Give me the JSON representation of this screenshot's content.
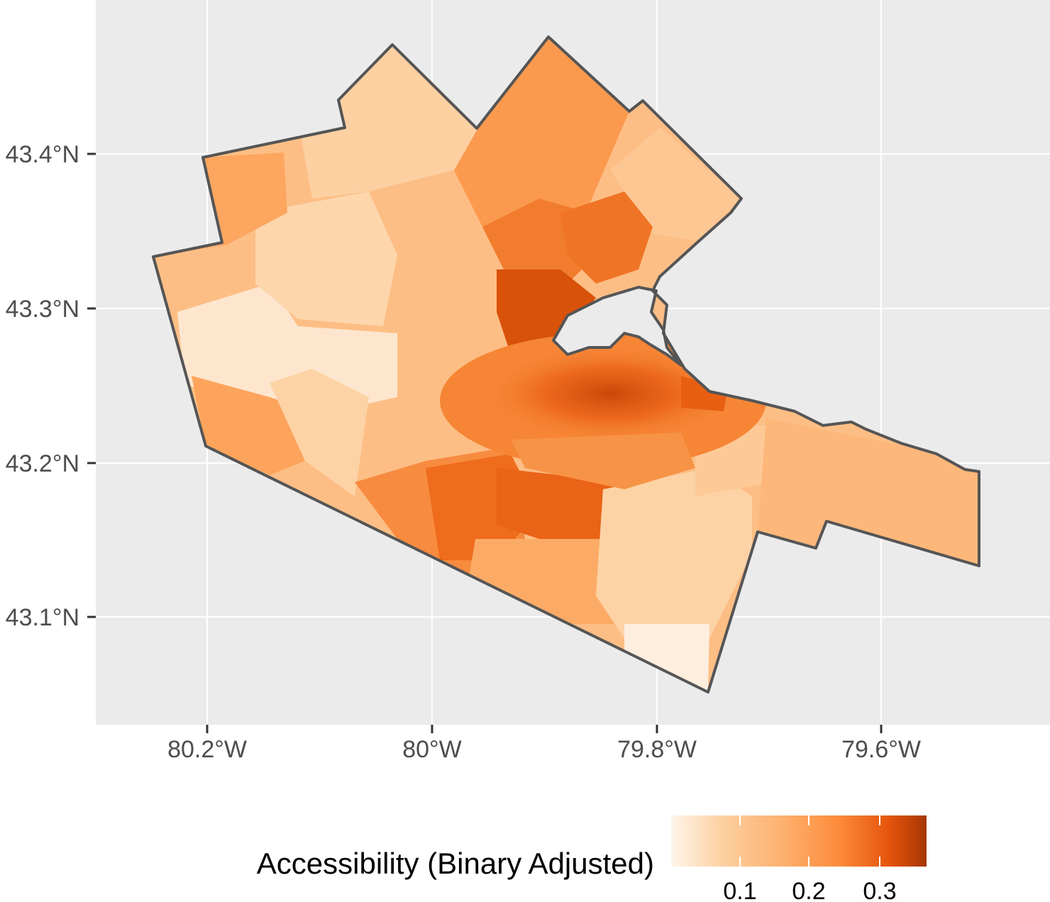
{
  "map": {
    "y_axis": {
      "ticks": [
        "43.1°N",
        "43.2°N",
        "43.3°N",
        "43.4°N"
      ],
      "values": [
        43.1,
        43.2,
        43.3,
        43.4
      ]
    },
    "x_axis": {
      "ticks": [
        "80.2°W",
        "80°W",
        "79.8°W",
        "79.6°W"
      ],
      "values": [
        -80.2,
        -80.0,
        -79.8,
        -79.6
      ]
    },
    "extent": {
      "lon": [
        -80.3,
        -79.45
      ],
      "lat": [
        43.03,
        43.49
      ]
    },
    "panel_background": "#ebebeb",
    "grid_color": "#ffffff",
    "boundary_color": "#555555",
    "water_color": "#ebebeb"
  },
  "legend": {
    "title": "Accessibility (Binary Adjusted)",
    "ticks": [
      "0.1",
      "0.2",
      "0.3"
    ],
    "tick_values": [
      0.1,
      0.2,
      0.3
    ],
    "range": [
      0.05,
      0.37
    ],
    "colors": [
      "#fff5eb",
      "#fdd0a2",
      "#fdae6b",
      "#fd8d3c",
      "#e6550d",
      "#a63603"
    ]
  }
}
